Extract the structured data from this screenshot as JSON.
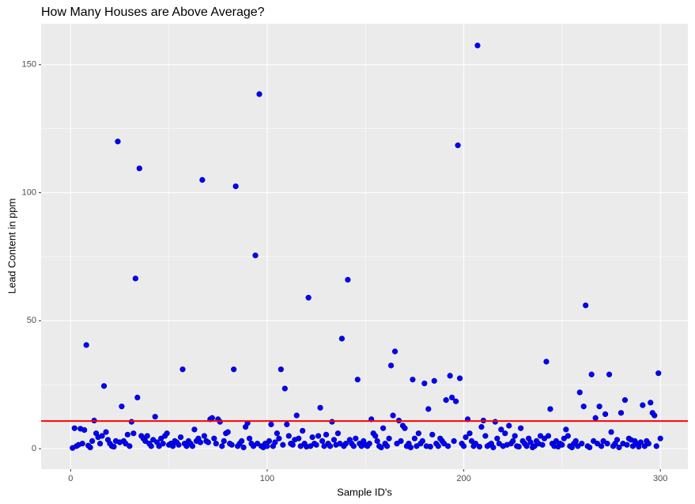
{
  "chart_data": {
    "type": "scatter",
    "title": "How Many Houses are Above Average?",
    "x_label": "Sample ID's",
    "y_label": "Lead Content in ppm",
    "color": "#0000ff",
    "grid": true,
    "xlim": [
      -15,
      314
    ],
    "ylim": [
      -8,
      166
    ],
    "xticks": [
      0,
      100,
      200,
      300
    ],
    "yticks": [
      0,
      50,
      100,
      150
    ],
    "hline": {
      "value": 10.8,
      "color": "#ff0000"
    },
    "x": [
      1,
      2,
      3,
      4,
      5,
      6,
      7,
      8,
      9,
      10,
      11,
      12,
      13,
      14,
      15,
      16,
      17,
      18,
      19,
      20,
      21,
      22,
      23,
      24,
      25,
      26,
      27,
      28,
      29,
      30,
      31,
      32,
      33,
      34,
      35,
      36,
      37,
      38,
      39,
      40,
      41,
      42,
      43,
      44,
      45,
      46,
      47,
      48,
      49,
      50,
      51,
      52,
      53,
      54,
      55,
      56,
      57,
      58,
      59,
      60,
      61,
      62,
      63,
      64,
      65,
      66,
      67,
      68,
      69,
      70,
      71,
      72,
      73,
      74,
      75,
      76,
      77,
      78,
      79,
      80,
      81,
      82,
      83,
      84,
      85,
      86,
      87,
      88,
      89,
      90,
      91,
      92,
      93,
      94,
      95,
      96,
      97,
      98,
      99,
      100,
      101,
      102,
      103,
      104,
      105,
      106,
      107,
      108,
      109,
      110,
      111,
      112,
      113,
      114,
      115,
      116,
      117,
      118,
      119,
      120,
      121,
      122,
      123,
      124,
      125,
      126,
      127,
      128,
      129,
      130,
      131,
      132,
      133,
      134,
      135,
      136,
      137,
      138,
      139,
      140,
      141,
      142,
      143,
      144,
      145,
      146,
      147,
      148,
      149,
      150,
      151,
      152,
      153,
      154,
      155,
      156,
      157,
      158,
      159,
      160,
      161,
      162,
      163,
      164,
      165,
      166,
      167,
      168,
      169,
      170,
      171,
      172,
      173,
      174,
      175,
      176,
      177,
      178,
      179,
      180,
      181,
      182,
      183,
      184,
      185,
      186,
      187,
      188,
      189,
      190,
      191,
      192,
      193,
      194,
      195,
      196,
      197,
      198,
      199,
      200,
      201,
      202,
      203,
      204,
      205,
      206,
      207,
      208,
      209,
      210,
      211,
      212,
      213,
      214,
      215,
      216,
      217,
      218,
      219,
      220,
      221,
      222,
      223,
      224,
      225,
      226,
      227,
      228,
      229,
      230,
      231,
      232,
      233,
      234,
      235,
      236,
      237,
      238,
      239,
      240,
      241,
      242,
      243,
      244,
      245,
      246,
      247,
      248,
      249,
      250,
      251,
      252,
      253,
      254,
      255,
      256,
      257,
      258,
      259,
      260,
      261,
      262,
      263,
      264,
      265,
      266,
      267,
      268,
      269,
      270,
      271,
      272,
      273,
      274,
      275,
      276,
      277,
      278,
      279,
      280,
      281,
      282,
      283,
      284,
      285,
      286,
      287,
      288,
      289,
      290,
      291,
      292,
      293,
      294,
      295,
      296,
      297,
      298,
      299,
      300
    ],
    "values": [
      0.3,
      8,
      1,
      1.5,
      7.8,
      2,
      7.3,
      40.5,
      1.2,
      0.5,
      3,
      11,
      6,
      4.5,
      2,
      5,
      24.5,
      6.5,
      3.5,
      2,
      1,
      0.8,
      3,
      120,
      2.5,
      16.5,
      3,
      2,
      5.5,
      1,
      10.5,
      6,
      66.5,
      20,
      109.5,
      5,
      4,
      3,
      5,
      2,
      1,
      3.5,
      12.5,
      2.5,
      1,
      4,
      2,
      5,
      6,
      1.5,
      2,
      1,
      3,
      2.5,
      1.5,
      4.5,
      31,
      2,
      1,
      3,
      2,
      1,
      7.5,
      3,
      4,
      2.5,
      105,
      5,
      3,
      2.5,
      11.5,
      12,
      4,
      2,
      11.5,
      10.5,
      1,
      3,
      6,
      6.5,
      2,
      1.5,
      31,
      102.5,
      1,
      2,
      3,
      0.5,
      8.5,
      10,
      4,
      2,
      1,
      75.5,
      2,
      138.5,
      1,
      0.5,
      2,
      1,
      3,
      9.5,
      1,
      2.5,
      6,
      4,
      31,
      1.5,
      23.5,
      9.5,
      5,
      2,
      1.5,
      3.5,
      13,
      4,
      1,
      7,
      2,
      0.8,
      59,
      1,
      4.5,
      2,
      1.5,
      5,
      16,
      3,
      1,
      5.5,
      2,
      1,
      10.5,
      3.5,
      1.5,
      6,
      2,
      43,
      1,
      2,
      66,
      3.5,
      2,
      1,
      4,
      27,
      2,
      1,
      3,
      1.5,
      1,
      2,
      11.5,
      6,
      5,
      3,
      1,
      0.5,
      8,
      2,
      1,
      4,
      32.5,
      13,
      38,
      2,
      11,
      3,
      9,
      8,
      1,
      2,
      0.5,
      27,
      4,
      1,
      6,
      2,
      3,
      25.5,
      1,
      15.5,
      0.8,
      5.5,
      26.5,
      2,
      1,
      4,
      3,
      2,
      19,
      1,
      28.5,
      20,
      3,
      18.5,
      118.5,
      27.5,
      2,
      1,
      4.5,
      11.5,
      6,
      3,
      1,
      2,
      157.5,
      0.8,
      8.5,
      11,
      5,
      1,
      1.5,
      2,
      0.5,
      10.5,
      4,
      2,
      7.5,
      1,
      6,
      1.5,
      9,
      2,
      3,
      5,
      1,
      0.8,
      8,
      3,
      2,
      1,
      4,
      2.5,
      0.5,
      1,
      3,
      2,
      5,
      1.5,
      4,
      34,
      5,
      15.5,
      2,
      1,
      3,
      0.8,
      2,
      1.5,
      4,
      7.5,
      5,
      1,
      0.5,
      2,
      3,
      1,
      22,
      2,
      16.5,
      56,
      1,
      0.5,
      29,
      3,
      12,
      2,
      16.5,
      1,
      3,
      13.5,
      2,
      29,
      6.5,
      1,
      2,
      3.5,
      0.5,
      14,
      2,
      19,
      1.5,
      4,
      3.5,
      1,
      3,
      2,
      0.8,
      2.5,
      17,
      1,
      3,
      2,
      18,
      14,
      13,
      1,
      29.5,
      4
    ]
  }
}
